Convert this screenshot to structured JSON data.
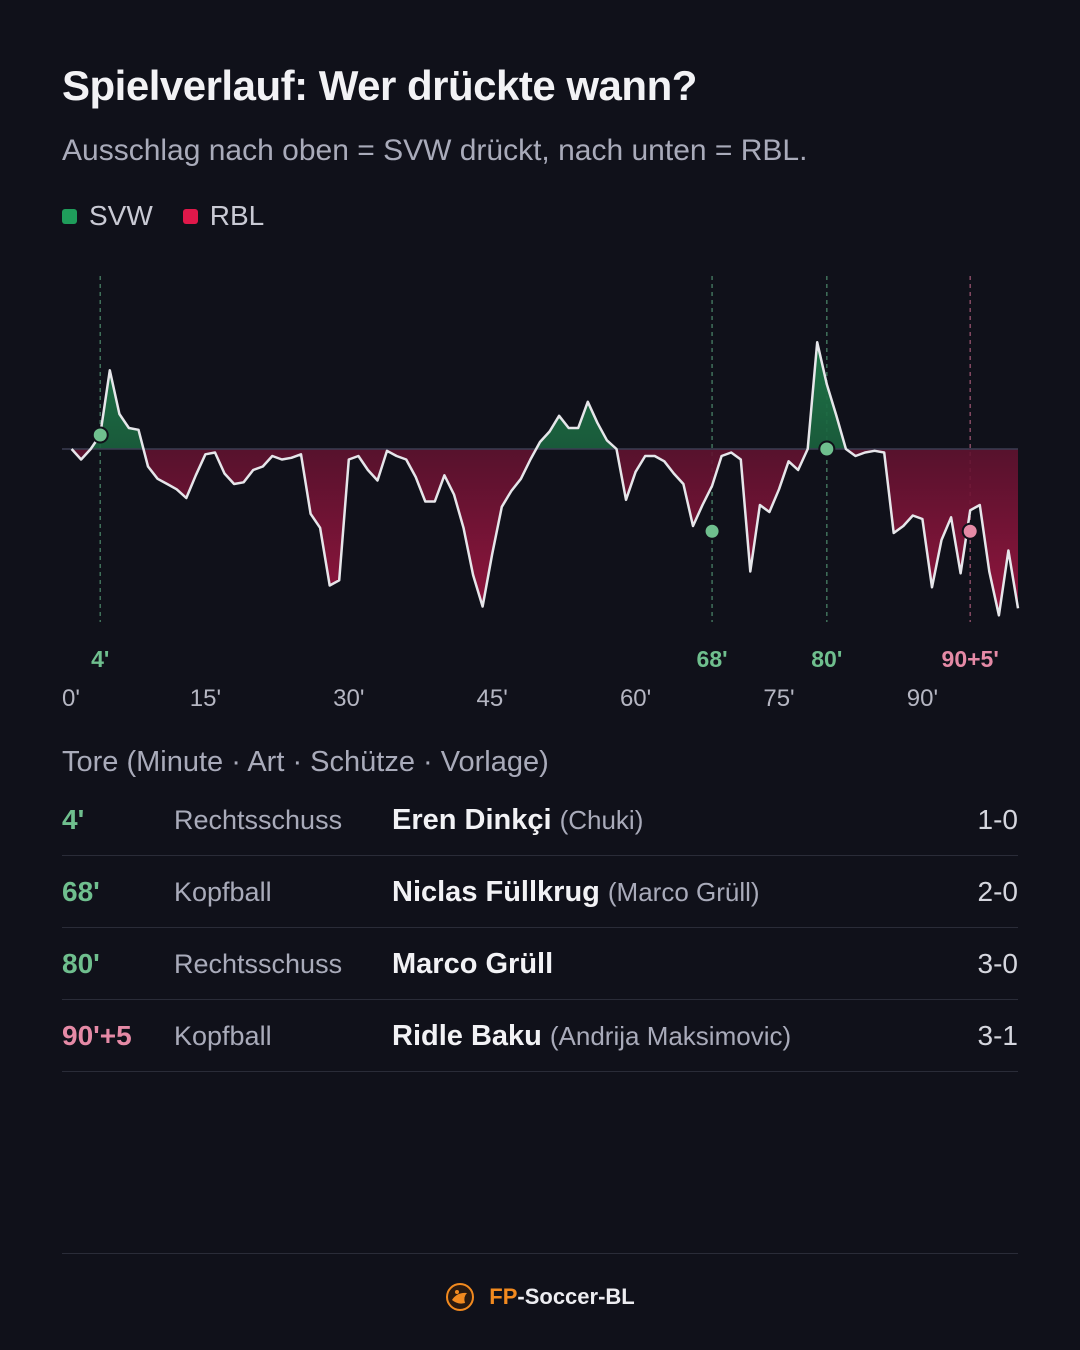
{
  "title": "Spielverlauf: Wer drückte wann?",
  "subtitle": "Ausschlag nach oben = SVW drückt, nach unten = RBL.",
  "colors": {
    "svw": "#1f9d5b",
    "rbl": "#e0184a",
    "svw_label": "#6fbf8e",
    "rbl_label": "#e58aa6",
    "line": "#e6e6ea"
  },
  "legend": [
    {
      "label": "SVW",
      "color": "#1f9d5b"
    },
    {
      "label": "RBL",
      "color": "#e0184a"
    }
  ],
  "chart_data": {
    "type": "area",
    "xlim": [
      0,
      100
    ],
    "ylim": [
      -10,
      10
    ],
    "x_ticks": [
      {
        "value": 0,
        "label": "0'"
      },
      {
        "value": 15,
        "label": "15'"
      },
      {
        "value": 30,
        "label": "30'"
      },
      {
        "value": 45,
        "label": "45'"
      },
      {
        "value": 60,
        "label": "60'"
      },
      {
        "value": 75,
        "label": "75'"
      },
      {
        "value": 90,
        "label": "90'"
      }
    ],
    "goal_markers": [
      {
        "minute": 4,
        "label": "4'",
        "team": "SVW",
        "y": 0.8
      },
      {
        "minute": 68,
        "label": "68'",
        "team": "SVW",
        "y": -4.7
      },
      {
        "minute": 80,
        "label": "80'",
        "team": "SVW",
        "y": 0
      },
      {
        "minute": 95,
        "label": "90+5'",
        "team": "RBL",
        "y": -4.7
      }
    ],
    "series": [
      {
        "x": [
          1,
          2,
          3,
          4,
          5,
          6,
          7,
          8,
          9,
          10,
          11,
          12,
          13,
          14,
          15,
          16,
          17,
          18,
          19,
          20,
          21,
          22,
          23,
          24,
          25,
          26,
          27,
          28,
          29,
          30,
          31,
          32,
          33,
          34,
          35,
          36,
          37,
          38,
          39,
          40,
          41,
          42,
          43,
          44,
          45,
          46,
          47,
          48,
          49,
          50,
          51,
          52,
          53,
          54,
          55,
          56,
          57,
          58,
          59,
          60,
          61,
          62,
          63,
          64,
          65,
          66,
          67,
          68,
          69,
          70,
          71,
          72,
          73,
          74,
          75,
          76,
          77,
          78,
          79,
          80,
          81,
          82,
          83,
          84,
          85,
          86,
          87,
          88,
          89,
          90,
          91,
          92,
          93,
          94,
          95,
          96,
          97,
          98,
          99,
          100
        ],
        "values": [
          0,
          -0.6,
          0,
          0.8,
          4.5,
          2,
          1.2,
          1.1,
          -1,
          -1.7,
          -2,
          -2.3,
          -2.8,
          -1.5,
          -0.3,
          -0.2,
          -1.4,
          -2,
          -1.9,
          -1.2,
          -1,
          -0.4,
          -0.6,
          -0.5,
          -0.3,
          -3.7,
          -4.5,
          -7.8,
          -7.5,
          -0.6,
          -0.4,
          -1.2,
          -1.8,
          -0.1,
          -0.4,
          -0.6,
          -1.6,
          -3,
          -3,
          -1.5,
          -2.6,
          -4.5,
          -7.2,
          -9,
          -6,
          -3.3,
          -2.4,
          -1.7,
          -0.6,
          0.4,
          1,
          1.9,
          1.2,
          1.2,
          2.7,
          1.5,
          0.5,
          0,
          -2.9,
          -1.3,
          -0.4,
          -0.4,
          -0.7,
          -1.4,
          -2,
          -4.4,
          -3.2,
          -2.1,
          -0.4,
          -0.2,
          -0.6,
          -7,
          -3.2,
          -3.6,
          -2.3,
          -0.7,
          -1.2,
          0,
          6.1,
          3.7,
          1.9,
          0,
          -0.4,
          -0.2,
          -0.1,
          -0.2,
          -4.8,
          -4.4,
          -3.8,
          -4,
          -7.9,
          -5.2,
          -3.9,
          -7.1,
          -3.5,
          -3.2,
          -7,
          -9.5,
          -5.8,
          -9.1
        ]
      }
    ]
  },
  "goals_title": "Tore (Minute · Art · Schütze · Vorlage)",
  "goals": [
    {
      "minute": "4'",
      "type": "Rechtsschuss",
      "scorer": "Eren Dinkçi",
      "assist": "(Chuki)",
      "score": "1-0",
      "team": "SVW"
    },
    {
      "minute": "68'",
      "type": "Kopfball",
      "scorer": "Niclas Füllkrug",
      "assist": "(Marco Grüll)",
      "score": "2-0",
      "team": "SVW"
    },
    {
      "minute": "80'",
      "type": "Rechtsschuss",
      "scorer": "Marco Grüll",
      "assist": "",
      "score": "3-0",
      "team": "SVW"
    },
    {
      "minute": "90'+5",
      "type": "Kopfball",
      "scorer": "Ridle Baku",
      "assist": "(Andrija Maksimovic)",
      "score": "3-1",
      "team": "RBL"
    }
  ],
  "footer": {
    "brand_fp": "FP",
    "brand_rest": "-Soccer-BL",
    "logo_icon": "ball-logo-icon"
  }
}
